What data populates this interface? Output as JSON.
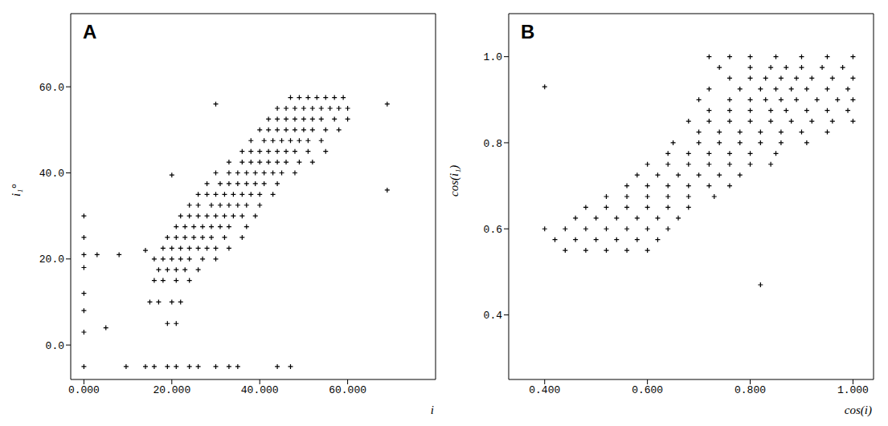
{
  "chart_data": [
    {
      "type": "scatter",
      "title": "A",
      "x_label": "i",
      "y_label": "i₁°",
      "color": "#000000",
      "marker": "plus",
      "xlim": [
        -3,
        80
      ],
      "ylim": [
        -8,
        77
      ],
      "xticks": [
        {
          "value": 0,
          "label": "0.000"
        },
        {
          "value": 20,
          "label": "20.000"
        },
        {
          "value": 40,
          "label": "40.000"
        },
        {
          "value": 60,
          "label": "60.000"
        }
      ],
      "yticks": [
        {
          "value": 0,
          "label": "0.0"
        },
        {
          "value": 20,
          "label": "20.0"
        },
        {
          "value": 40,
          "label": "40.0"
        },
        {
          "value": 60,
          "label": "60.0"
        }
      ],
      "x": [
        0,
        9.6,
        14,
        16,
        19,
        21,
        24,
        26,
        30,
        33,
        35,
        44,
        47,
        0,
        0,
        0,
        0,
        0,
        0,
        0,
        3,
        8,
        5,
        19,
        21,
        15,
        17,
        20,
        22,
        16,
        18,
        21,
        24,
        17,
        19,
        21,
        23,
        26,
        16,
        18,
        20,
        22,
        24,
        27,
        30,
        18,
        20,
        22,
        24,
        26,
        28,
        30,
        33,
        19,
        21,
        23,
        25,
        27,
        29,
        32,
        36,
        21,
        23,
        25,
        27,
        29,
        31,
        33,
        37,
        22,
        24,
        26,
        28,
        30,
        32,
        34,
        36,
        39,
        24,
        26,
        29,
        31,
        33,
        35,
        37,
        40,
        26,
        28,
        30,
        32,
        34,
        36,
        38,
        40,
        43,
        28,
        31,
        33,
        35,
        37,
        39,
        41,
        44,
        30,
        33,
        35,
        37,
        39,
        41,
        43,
        45,
        48,
        33,
        36,
        38,
        40,
        42,
        44,
        46,
        49,
        52,
        36,
        38,
        40,
        42,
        44,
        46,
        48,
        51,
        55,
        38,
        41,
        43,
        45,
        47,
        49,
        51,
        54,
        40,
        42,
        44,
        46,
        48,
        50,
        52,
        55,
        58,
        42,
        44,
        46,
        48,
        50,
        52,
        54,
        57,
        60,
        44,
        46,
        48,
        50,
        52,
        54,
        56,
        58,
        60,
        47,
        49,
        51,
        53,
        55,
        57,
        59,
        14,
        30,
        69,
        69,
        20
      ],
      "values": [
        -5,
        -5,
        -5,
        -5,
        -5,
        -5,
        -5,
        -5,
        -5,
        -5,
        -5,
        -5,
        -5,
        3,
        8,
        12,
        18,
        21,
        25,
        30,
        21,
        21,
        4,
        5,
        5,
        10,
        10,
        10,
        10,
        15,
        15,
        15,
        15,
        17.5,
        17.5,
        17.5,
        17.5,
        17.5,
        20,
        20,
        20,
        20,
        20,
        20,
        20,
        22.5,
        22.5,
        22.5,
        22.5,
        22.5,
        22.5,
        22.5,
        22.5,
        25,
        25,
        25,
        25,
        25,
        25,
        25,
        25,
        27.5,
        27.5,
        27.5,
        27.5,
        27.5,
        27.5,
        27.5,
        27.5,
        30,
        30,
        30,
        30,
        30,
        30,
        30,
        30,
        30,
        32.5,
        32.5,
        32.5,
        32.5,
        32.5,
        32.5,
        32.5,
        32.5,
        35,
        35,
        35,
        35,
        35,
        35,
        35,
        35,
        35,
        37.5,
        37.5,
        37.5,
        37.5,
        37.5,
        37.5,
        37.5,
        37.5,
        40,
        40,
        40,
        40,
        40,
        40,
        40,
        40,
        40,
        42.5,
        42.5,
        42.5,
        42.5,
        42.5,
        42.5,
        42.5,
        42.5,
        42.5,
        45,
        45,
        45,
        45,
        45,
        45,
        45,
        45,
        45,
        47.5,
        47.5,
        47.5,
        47.5,
        47.5,
        47.5,
        47.5,
        47.5,
        50,
        50,
        50,
        50,
        50,
        50,
        50,
        50,
        50,
        52.5,
        52.5,
        52.5,
        52.5,
        52.5,
        52.5,
        52.5,
        52.5,
        52.5,
        55,
        55,
        55,
        55,
        55,
        55,
        55,
        55,
        55,
        57.5,
        57.5,
        57.5,
        57.5,
        57.5,
        57.5,
        57.5,
        22,
        56,
        56,
        36,
        39.5
      ]
    },
    {
      "type": "scatter",
      "title": "B",
      "x_label": "cos(i)",
      "y_label": "cos(i₁)",
      "color": "#000000",
      "marker": "plus",
      "xlim": [
        0.33,
        1.04
      ],
      "ylim": [
        0.25,
        1.1
      ],
      "xticks": [
        {
          "value": 0.4,
          "label": "0.400"
        },
        {
          "value": 0.6,
          "label": "0.600"
        },
        {
          "value": 0.8,
          "label": "0.800"
        },
        {
          "value": 1.0,
          "label": "1.000"
        }
      ],
      "yticks": [
        0.4,
        0.6,
        0.8,
        {
          "value": 1.0,
          "label": "1.0"
        }
      ],
      "x": [
        0.72,
        0.76,
        0.8,
        0.85,
        0.9,
        0.95,
        1.0,
        0.74,
        0.8,
        0.84,
        0.87,
        0.9,
        0.94,
        0.98,
        0.76,
        0.8,
        0.83,
        0.86,
        0.89,
        0.92,
        0.96,
        1.0,
        0.72,
        0.78,
        0.82,
        0.85,
        0.88,
        0.91,
        0.95,
        0.99,
        0.7,
        0.76,
        0.8,
        0.83,
        0.86,
        0.89,
        0.93,
        0.97,
        1.0,
        0.72,
        0.76,
        0.8,
        0.84,
        0.87,
        0.91,
        0.95,
        0.99,
        0.68,
        0.72,
        0.76,
        0.8,
        0.84,
        0.88,
        0.92,
        0.96,
        1.0,
        0.7,
        0.74,
        0.78,
        0.82,
        0.86,
        0.9,
        0.95,
        0.65,
        0.7,
        0.74,
        0.78,
        0.82,
        0.86,
        0.91,
        0.64,
        0.68,
        0.72,
        0.76,
        0.8,
        0.85,
        0.6,
        0.64,
        0.68,
        0.72,
        0.76,
        0.8,
        0.84,
        0.58,
        0.62,
        0.66,
        0.7,
        0.74,
        0.78,
        0.56,
        0.6,
        0.64,
        0.68,
        0.72,
        0.76,
        0.52,
        0.56,
        0.6,
        0.64,
        0.68,
        0.73,
        0.48,
        0.52,
        0.56,
        0.6,
        0.64,
        0.68,
        0.46,
        0.5,
        0.54,
        0.58,
        0.62,
        0.66,
        0.4,
        0.44,
        0.48,
        0.52,
        0.56,
        0.6,
        0.64,
        0.42,
        0.46,
        0.5,
        0.54,
        0.58,
        0.62,
        0.44,
        0.48,
        0.52,
        0.56,
        0.6,
        0.4,
        0.82
      ],
      "values": [
        1.0,
        1.0,
        1.0,
        1.0,
        1.0,
        1.0,
        1.0,
        0.975,
        0.975,
        0.975,
        0.975,
        0.975,
        0.975,
        0.975,
        0.95,
        0.95,
        0.95,
        0.95,
        0.95,
        0.95,
        0.95,
        0.95,
        0.925,
        0.925,
        0.925,
        0.925,
        0.925,
        0.925,
        0.925,
        0.925,
        0.9,
        0.9,
        0.9,
        0.9,
        0.9,
        0.9,
        0.9,
        0.9,
        0.9,
        0.875,
        0.875,
        0.875,
        0.875,
        0.875,
        0.875,
        0.875,
        0.875,
        0.85,
        0.85,
        0.85,
        0.85,
        0.85,
        0.85,
        0.85,
        0.85,
        0.85,
        0.825,
        0.825,
        0.825,
        0.825,
        0.825,
        0.825,
        0.825,
        0.8,
        0.8,
        0.8,
        0.8,
        0.8,
        0.8,
        0.8,
        0.775,
        0.775,
        0.775,
        0.775,
        0.775,
        0.775,
        0.75,
        0.75,
        0.75,
        0.75,
        0.75,
        0.75,
        0.75,
        0.725,
        0.725,
        0.725,
        0.725,
        0.725,
        0.725,
        0.7,
        0.7,
        0.7,
        0.7,
        0.7,
        0.7,
        0.675,
        0.675,
        0.675,
        0.675,
        0.675,
        0.675,
        0.65,
        0.65,
        0.65,
        0.65,
        0.65,
        0.65,
        0.625,
        0.625,
        0.625,
        0.625,
        0.625,
        0.625,
        0.6,
        0.6,
        0.6,
        0.6,
        0.6,
        0.6,
        0.6,
        0.575,
        0.575,
        0.575,
        0.575,
        0.575,
        0.575,
        0.55,
        0.55,
        0.55,
        0.55,
        0.55,
        0.93,
        0.47
      ]
    }
  ]
}
